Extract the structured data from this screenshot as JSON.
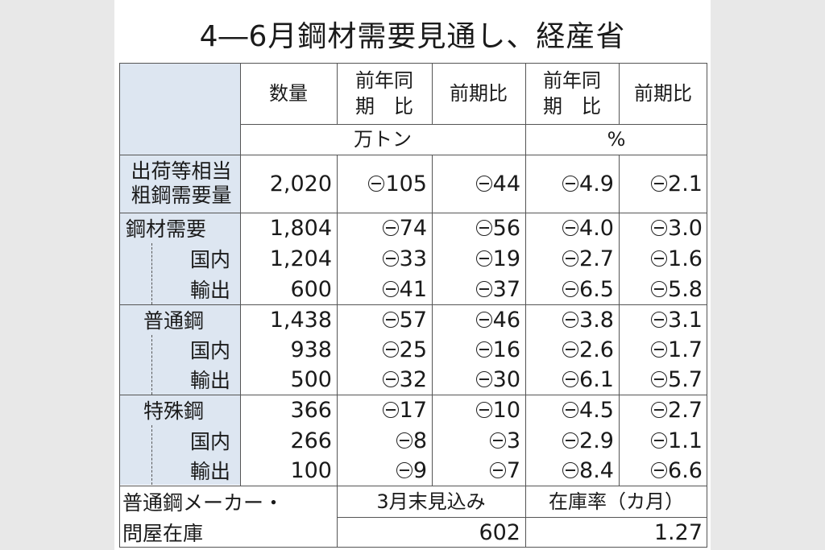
{
  "title": "4―6月鋼材需要見通し、経産省",
  "columns": {
    "quantity": "数量",
    "yoy_line1": "前年同",
    "yoy_line2": "期　比",
    "qoq": "前期比",
    "yoy_pct_line1": "前年同",
    "yoy_pct_line2": "期　比",
    "qoq_pct": "前期比"
  },
  "units": {
    "tons": "万トン",
    "percent": "%"
  },
  "rows": [
    {
      "label": "出荷等相当",
      "label2": "粗鋼需要量",
      "quantity": "2,020",
      "yoy": "105",
      "qoq": "44",
      "yoy_pct": "4.9",
      "qoq_pct": "2.1"
    },
    {
      "label": "鋼材需要",
      "quantity": "1,804",
      "yoy": "74",
      "qoq": "56",
      "yoy_pct": "4.0",
      "qoq_pct": "3.0"
    },
    {
      "label": "国内",
      "quantity": "1,204",
      "yoy": "33",
      "qoq": "19",
      "yoy_pct": "2.7",
      "qoq_pct": "1.6"
    },
    {
      "label": "輸出",
      "quantity": "600",
      "yoy": "41",
      "qoq": "37",
      "yoy_pct": "6.5",
      "qoq_pct": "5.8"
    },
    {
      "label": "普通鋼",
      "quantity": "1,438",
      "yoy": "57",
      "qoq": "46",
      "yoy_pct": "3.8",
      "qoq_pct": "3.1"
    },
    {
      "label": "国内",
      "quantity": "938",
      "yoy": "25",
      "qoq": "16",
      "yoy_pct": "2.6",
      "qoq_pct": "1.7"
    },
    {
      "label": "輸出",
      "quantity": "500",
      "yoy": "32",
      "qoq": "30",
      "yoy_pct": "6.1",
      "qoq_pct": "5.7"
    },
    {
      "label": "特殊鋼",
      "quantity": "366",
      "yoy": "17",
      "qoq": "10",
      "yoy_pct": "4.5",
      "qoq_pct": "2.7"
    },
    {
      "label": "国内",
      "quantity": "266",
      "yoy": "8",
      "qoq": "3",
      "yoy_pct": "2.9",
      "qoq_pct": "1.1"
    },
    {
      "label": "輸出",
      "quantity": "100",
      "yoy": "9",
      "qoq": "7",
      "yoy_pct": "8.4",
      "qoq_pct": "6.6"
    }
  ],
  "inventory": {
    "label_line1": "普通鋼メーカー・",
    "label_line2": "問屋在庫",
    "end_march_header": "3月末見込み",
    "ratio_header": "在庫率（カ月）",
    "end_march_value": "602",
    "ratio_value": "1.27"
  }
}
